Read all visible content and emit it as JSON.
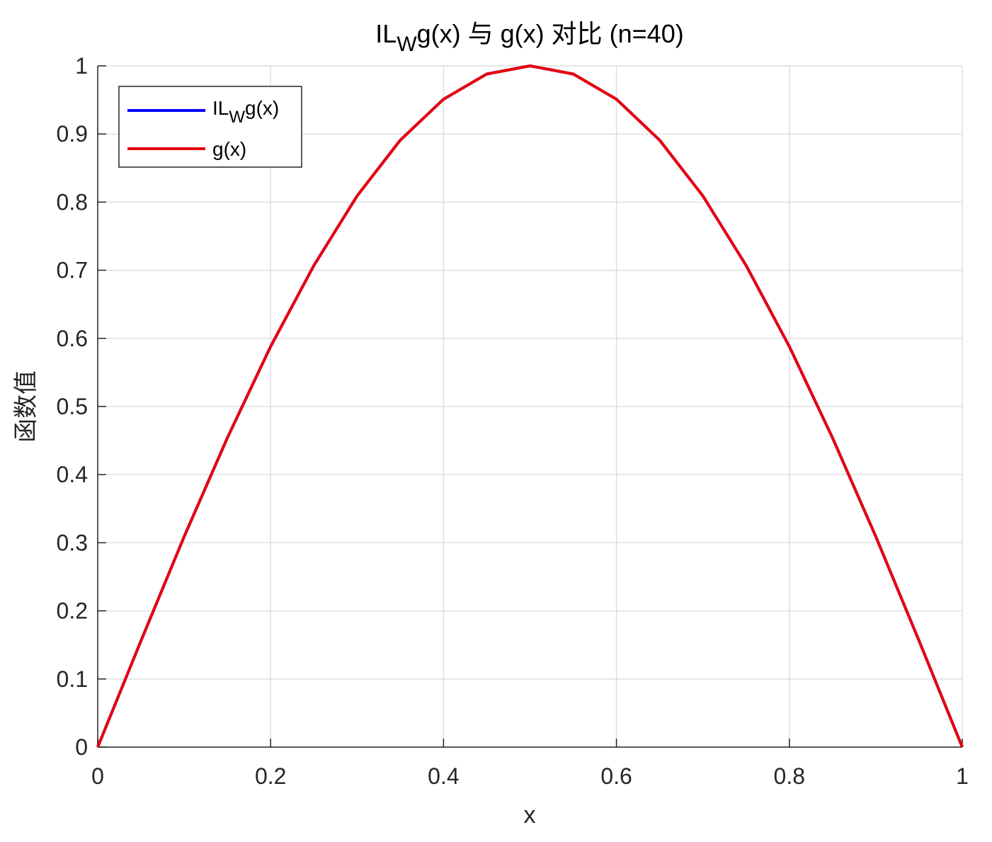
{
  "chart_data": {
    "type": "line",
    "title": {
      "main": "IL",
      "sub": "W",
      "rest": "g(x) 与 g(x) 对比 (n=40)"
    },
    "xlabel": "x",
    "ylabel": "函数值",
    "xlim": [
      0,
      1
    ],
    "ylim": [
      0,
      1
    ],
    "xticks": [
      0,
      0.2,
      0.4,
      0.6,
      0.8,
      1
    ],
    "xtick_labels": [
      "0",
      "0.2",
      "0.4",
      "0.6",
      "0.8",
      "1"
    ],
    "yticks": [
      0,
      0.1,
      0.2,
      0.3,
      0.4,
      0.5,
      0.6,
      0.7,
      0.8,
      0.9,
      1
    ],
    "ytick_labels": [
      "0",
      "0.1",
      "0.2",
      "0.3",
      "0.4",
      "0.5",
      "0.6",
      "0.7",
      "0.8",
      "0.9",
      "1"
    ],
    "grid": true,
    "legend_position": "top-left",
    "x": [
      0,
      0.05,
      0.1,
      0.15,
      0.2,
      0.25,
      0.3,
      0.35,
      0.4,
      0.45,
      0.5,
      0.55,
      0.6,
      0.65,
      0.7,
      0.75,
      0.8,
      0.85,
      0.9,
      0.95,
      1
    ],
    "series": [
      {
        "name": {
          "main": "IL",
          "sub": "W",
          "rest": "g(x)"
        },
        "color": "#0000ff",
        "values": [
          0,
          0.156,
          0.309,
          0.454,
          0.588,
          0.707,
          0.809,
          0.891,
          0.951,
          0.988,
          1,
          0.988,
          0.951,
          0.891,
          0.809,
          0.707,
          0.588,
          0.454,
          0.309,
          0.156,
          0
        ]
      },
      {
        "name": {
          "main": "g(x)",
          "sub": "",
          "rest": ""
        },
        "color": "#e8000b",
        "values": [
          0,
          0.156,
          0.309,
          0.454,
          0.588,
          0.707,
          0.809,
          0.891,
          0.951,
          0.988,
          1,
          0.988,
          0.951,
          0.891,
          0.809,
          0.707,
          0.588,
          0.454,
          0.309,
          0.156,
          0
        ]
      }
    ]
  }
}
